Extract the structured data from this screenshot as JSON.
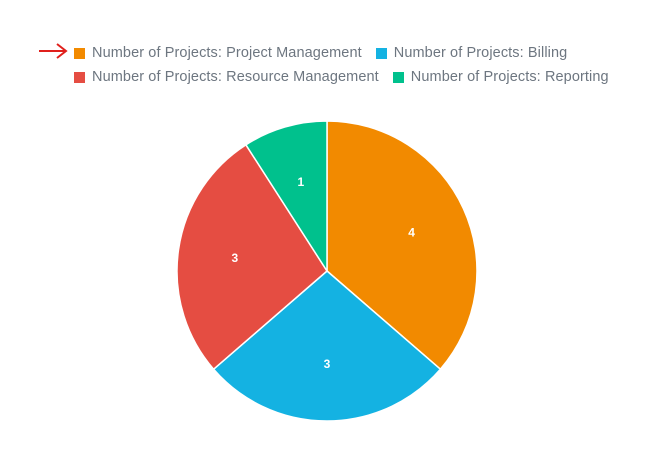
{
  "chart_data": {
    "type": "pie",
    "title": "",
    "categories": [
      "Number of Projects: Project Management",
      "Number of Projects: Billing",
      "Number of Projects: Resource Management",
      "Number of Projects: Reporting"
    ],
    "values": [
      4,
      3,
      3,
      1
    ],
    "slice_order_clockwise_from_top": [
      "Number of Projects: Project Management",
      "Number of Projects: Billing",
      "Number of Projects: Resource Management",
      "Number of Projects: Reporting"
    ],
    "data_labels": [
      "4",
      "3",
      "3",
      "1"
    ],
    "colors": [
      "#f28a00",
      "#14b2e2",
      "#e54d42",
      "#00c18d"
    ],
    "legend_placement": "top-left",
    "grid": false
  },
  "legend": {
    "rows": [
      [
        {
          "label": "Number of Projects: Project Management",
          "color": "#f28a00"
        },
        {
          "label": "Number of Projects: Billing",
          "color": "#14b2e2"
        }
      ],
      [
        {
          "label": "Number of Projects: Resource Management",
          "color": "#e54d42"
        },
        {
          "label": "Number of Projects: Reporting",
          "color": "#00c18d"
        }
      ]
    ]
  },
  "annotation": {
    "icon": "red-arrow-right-icon",
    "color": "#e0201c"
  }
}
